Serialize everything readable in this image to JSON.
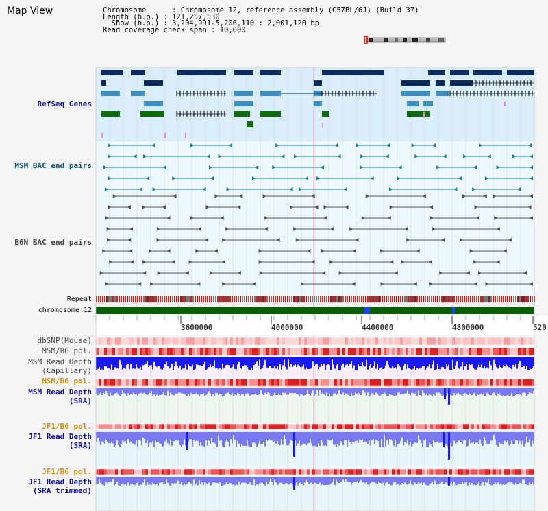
{
  "title": "Map View",
  "info": {
    "chromosome_line": "Chromosome      : Chromosome 12, reference assembly (C57BL/6J) (Build 37)",
    "length_line": "Length (b.p.) : 121,257,530",
    "show_line": "  Show (b.p.) : 3,204,991-5,206,110 : 2,001,120 bp",
    "coverage_line": "Read coverage check span : 10,000"
  },
  "tracks": {
    "refseq": "RefSeq Genes",
    "msm_bac": "MSM BAC end pairs",
    "b6n_bac": "B6N BAC end pairs",
    "repeat": "Repeat",
    "chromosome": "chromosome 12",
    "dbsnp": "dbSNP(Mouse)",
    "msm_b6_pol_1": "MSM/B6 pol.",
    "msm_read_depth_cap_1": "MSM Read Depth",
    "msm_read_depth_cap_2": "(Capillary)",
    "msm_b6_pol_2": "MSM/B6 pol.",
    "msm_read_depth_sra_1": "MSM Read Depth",
    "msm_read_depth_sra_2": "(SRA)",
    "jf1_b6_pol_1": "JF1/B6 pol.",
    "jf1_read_depth_sra_1": "JF1 Read Depth",
    "jf1_read_depth_sra_2": "(SRA)",
    "jf1_b6_pol_2": "JF1/B6 pol.",
    "jf1_read_depth_trim_1": "JF1 Read Depth",
    "jf1_read_depth_trim_2": "(SRA trimmed)"
  },
  "ruler": {
    "ticks": [
      "3600000",
      "4000000",
      "4400000",
      "4800000",
      "520"
    ]
  },
  "colors": {
    "refseq_bg": "#d9eefa",
    "bac_bg": "#ecf8fb",
    "depth_cap_bg": "#f8eefa",
    "depth_sra_bg": "#ecf6ec",
    "depth_jf1_bg": "#e6f6f8",
    "gene_dark": "#0b2a5e",
    "gene_mid": "#3e8fc0",
    "gene_green": "#0c6b0c",
    "msm_pair": "#1a7a9c",
    "b6n_pair": "#444444",
    "chromosome_bar": "#066006",
    "depth_blue": "#1a1aee",
    "depth_light": "#7878f0",
    "label_blue": "#0a0aa0",
    "label_teal": "#0a5a7a",
    "label_orange": "#e08a00"
  }
}
